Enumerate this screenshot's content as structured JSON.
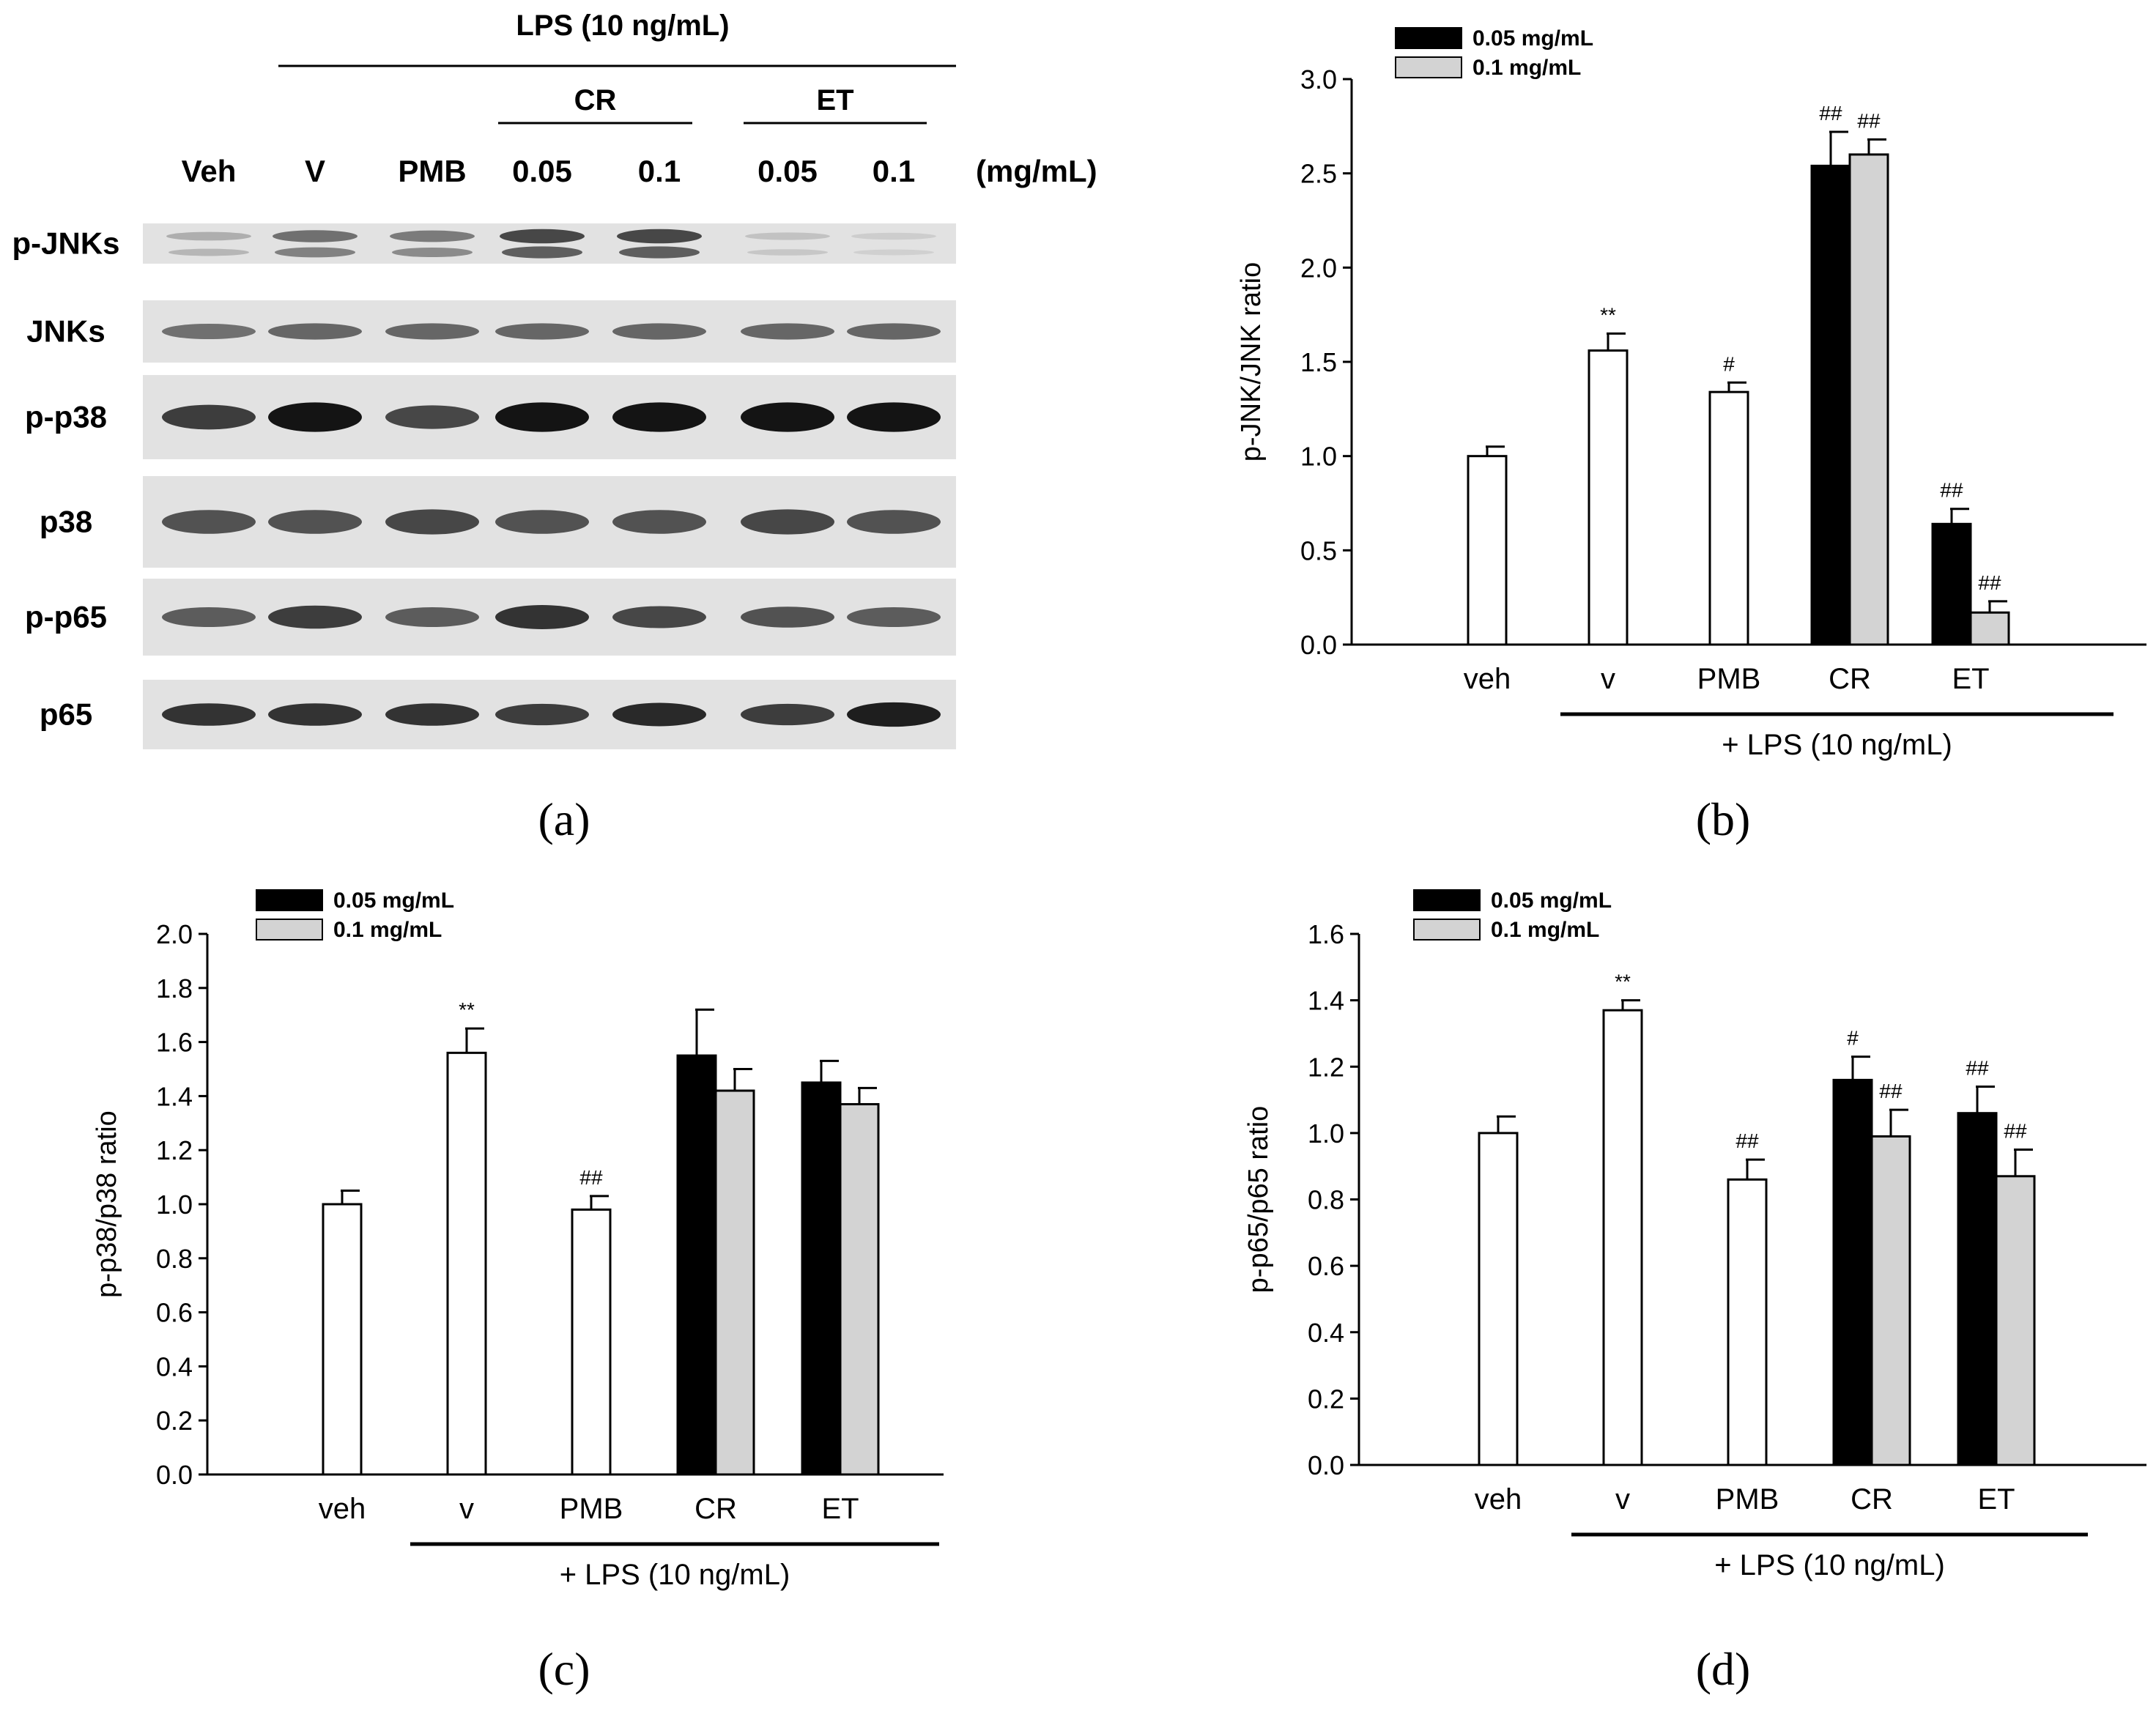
{
  "blot": {
    "panel_label": "(a)",
    "header": "LPS (10 ng/mL)",
    "groups": [
      {
        "label": "CR",
        "lanes": [
          3,
          4
        ]
      },
      {
        "label": "ET",
        "lanes": [
          5,
          6
        ]
      }
    ],
    "lanes": [
      "Veh",
      "V",
      "PMB",
      "0.05",
      "0.1",
      "0.05",
      "0.1"
    ],
    "unit": "(mg/mL)",
    "rows": [
      {
        "label": "p-JNKs",
        "intensity": [
          0.25,
          0.55,
          0.5,
          0.75,
          0.75,
          0.15,
          0.1
        ],
        "upper_band": true
      },
      {
        "label": "JNKs",
        "intensity": [
          0.55,
          0.6,
          0.6,
          0.6,
          0.6,
          0.6,
          0.6
        ],
        "upper_band": false
      },
      {
        "label": "p-p38",
        "intensity": [
          0.8,
          1.0,
          0.75,
          1.0,
          1.0,
          1.0,
          1.0
        ],
        "upper_band": false
      },
      {
        "label": "p38",
        "intensity": [
          0.7,
          0.7,
          0.75,
          0.7,
          0.7,
          0.75,
          0.7
        ],
        "upper_band": false
      },
      {
        "label": "p-p65",
        "intensity": [
          0.65,
          0.8,
          0.65,
          0.85,
          0.75,
          0.7,
          0.65
        ],
        "upper_band": false
      },
      {
        "label": "p65",
        "intensity": [
          0.85,
          0.85,
          0.85,
          0.8,
          0.9,
          0.8,
          0.95
        ],
        "upper_band": false
      }
    ]
  },
  "chart_data": [
    {
      "panel_label": "(b)",
      "type": "bar",
      "ylabel": "p-JNK/JNK ratio",
      "ylim": [
        0,
        3.0
      ],
      "yticks": [
        "0.0",
        "0.5",
        "1.0",
        "1.5",
        "2.0",
        "2.5",
        "3.0"
      ],
      "categories": [
        "veh",
        "v",
        "PMB",
        "CR",
        "ET"
      ],
      "bracket_label": "+ LPS (10 ng/mL)",
      "legend": [
        {
          "name": "0.05 mg/mL",
          "color": "#000000"
        },
        {
          "name": "0.1 mg/mL",
          "color": "#d3d3d3"
        }
      ],
      "single": [
        {
          "category": "veh",
          "value": 1.0,
          "err": 0.05,
          "annot": ""
        },
        {
          "category": "v",
          "value": 1.56,
          "err": 0.09,
          "annot": "**"
        },
        {
          "category": "PMB",
          "value": 1.34,
          "err": 0.05,
          "annot": "#"
        }
      ],
      "paired": [
        {
          "category": "CR",
          "values": [
            2.54,
            2.6
          ],
          "errs": [
            0.18,
            0.08
          ],
          "annots": [
            "##",
            "##"
          ]
        },
        {
          "category": "ET",
          "values": [
            0.64,
            0.17
          ],
          "errs": [
            0.08,
            0.06
          ],
          "annots": [
            "##",
            "##"
          ]
        }
      ]
    },
    {
      "panel_label": "(c)",
      "type": "bar",
      "ylabel": "p-p38/p38 ratio",
      "ylim": [
        0,
        2.0
      ],
      "yticks": [
        "0.0",
        "0.2",
        "0.4",
        "0.6",
        "0.8",
        "1.0",
        "1.2",
        "1.4",
        "1.6",
        "1.8",
        "2.0"
      ],
      "categories": [
        "veh",
        "v",
        "PMB",
        "CR",
        "ET"
      ],
      "bracket_label": "+ LPS (10 ng/mL)",
      "legend": [
        {
          "name": "0.05 mg/mL",
          "color": "#000000"
        },
        {
          "name": "0.1 mg/mL",
          "color": "#d3d3d3"
        }
      ],
      "single": [
        {
          "category": "veh",
          "value": 1.0,
          "err": 0.05,
          "annot": ""
        },
        {
          "category": "v",
          "value": 1.56,
          "err": 0.09,
          "annot": "**"
        },
        {
          "category": "PMB",
          "value": 0.98,
          "err": 0.05,
          "annot": "##"
        }
      ],
      "paired": [
        {
          "category": "CR",
          "values": [
            1.55,
            1.42
          ],
          "errs": [
            0.17,
            0.08
          ],
          "annots": [
            "",
            ""
          ]
        },
        {
          "category": "ET",
          "values": [
            1.45,
            1.37
          ],
          "errs": [
            0.08,
            0.06
          ],
          "annots": [
            "",
            ""
          ]
        }
      ]
    },
    {
      "panel_label": "(d)",
      "type": "bar",
      "ylabel": "p-p65/p65 ratio",
      "ylim": [
        0,
        1.6
      ],
      "yticks": [
        "0.0",
        "0.2",
        "0.4",
        "0.6",
        "0.8",
        "1.0",
        "1.2",
        "1.4",
        "1.6"
      ],
      "categories": [
        "veh",
        "v",
        "PMB",
        "CR",
        "ET"
      ],
      "bracket_label": "+ LPS (10 ng/mL)",
      "legend": [
        {
          "name": "0.05 mg/mL",
          "color": "#000000"
        },
        {
          "name": "0.1 mg/mL",
          "color": "#d3d3d3"
        }
      ],
      "single": [
        {
          "category": "veh",
          "value": 1.0,
          "err": 0.05,
          "annot": ""
        },
        {
          "category": "v",
          "value": 1.37,
          "err": 0.03,
          "annot": "**"
        },
        {
          "category": "PMB",
          "value": 0.86,
          "err": 0.06,
          "annot": "##"
        }
      ],
      "paired": [
        {
          "category": "CR",
          "values": [
            1.16,
            0.99
          ],
          "errs": [
            0.07,
            0.08
          ],
          "annots": [
            "#",
            "##"
          ]
        },
        {
          "category": "ET",
          "values": [
            1.06,
            0.87
          ],
          "errs": [
            0.08,
            0.08
          ],
          "annots": [
            "##",
            "##"
          ]
        }
      ]
    }
  ]
}
